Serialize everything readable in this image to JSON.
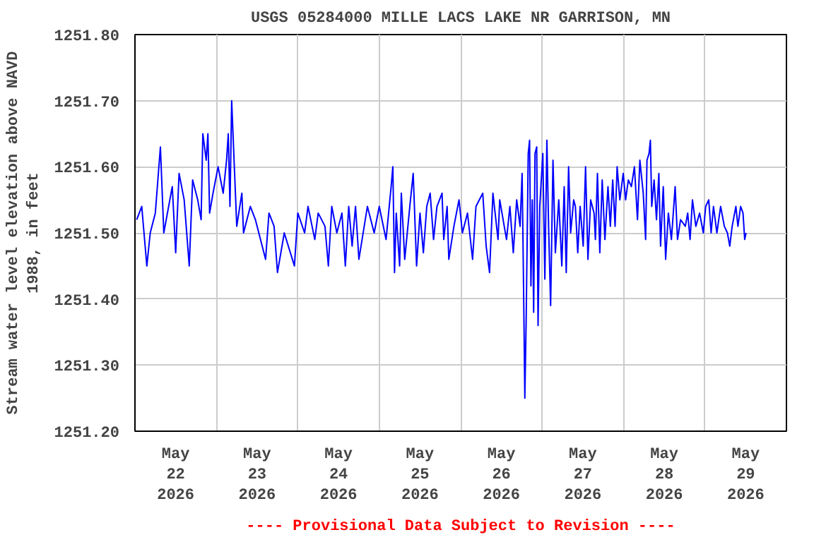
{
  "chart_data": {
    "type": "line",
    "title": "USGS 05284000 MILLE LACS LAKE NR GARRISON, MN",
    "ylabel": "Stream water level elevation above NAVD\n1988, in feet",
    "annotations": [
      "---- Provisional Data Subject to Revision ----"
    ],
    "xlim": [
      "2026-05-22",
      "2026-05-30"
    ],
    "xticks": [
      {
        "value": "2026-05-22",
        "label": null
      },
      {
        "value": "2026-05-22T12:00",
        "label": "May\n22\n2026"
      },
      {
        "value": "2026-05-23",
        "label": null
      },
      {
        "value": "2026-05-23T12:00",
        "label": "May\n23\n2026"
      },
      {
        "value": "2026-05-24",
        "label": null
      },
      {
        "value": "2026-05-24T12:00",
        "label": "May\n24\n2026"
      },
      {
        "value": "2026-05-25",
        "label": null
      },
      {
        "value": "2026-05-25T12:00",
        "label": "May\n25\n2026"
      },
      {
        "value": "2026-05-26",
        "label": null
      },
      {
        "value": "2026-05-26T12:00",
        "label": "May\n26\n2026"
      },
      {
        "value": "2026-05-27",
        "label": null
      },
      {
        "value": "2026-05-27T12:00",
        "label": "May\n27\n2026"
      },
      {
        "value": "2026-05-28",
        "label": null
      },
      {
        "value": "2026-05-28T12:00",
        "label": "May\n28\n2026"
      },
      {
        "value": "2026-05-29",
        "label": null
      },
      {
        "value": "2026-05-29T12:00",
        "label": "May\n29\n2026"
      },
      {
        "value": "2026-05-30",
        "label": null
      }
    ],
    "ylim": [
      1251.2,
      1251.8
    ],
    "yticks": [
      {
        "value": 1251.2,
        "label": "1251.20"
      },
      {
        "value": 1251.3,
        "label": "1251.30"
      },
      {
        "value": 1251.4,
        "label": "1251.40"
      },
      {
        "value": 1251.5,
        "label": "1251.50"
      },
      {
        "value": 1251.6,
        "label": "1251.60"
      },
      {
        "value": 1251.7,
        "label": "1251.70"
      },
      {
        "value": 1251.8,
        "label": "1251.80"
      }
    ],
    "grid": true,
    "line_style": "solid",
    "series": [
      {
        "color": "#0000ff",
        "x": [
          "2026-05-22T00:30",
          "2026-05-22T02:00",
          "2026-05-22T03:30",
          "2026-05-22T04:30",
          "2026-05-22T06:00",
          "2026-05-22T07:30",
          "2026-05-22T08:30",
          "2026-05-22T11:00",
          "2026-05-22T12:00",
          "2026-05-22T13:00",
          "2026-05-22T14:30",
          "2026-05-22T16:00",
          "2026-05-22T17:00",
          "2026-05-22T18:30",
          "2026-05-22T19:30",
          "2026-05-22T20:00",
          "2026-05-22T21:00",
          "2026-05-22T21:30",
          "2026-05-22T22:00",
          "2026-05-22T23:00",
          "2026-05-23T00:30",
          "2026-05-23T02:00",
          "2026-05-23T03:00",
          "2026-05-23T03:30",
          "2026-05-23T04:00",
          "2026-05-23T04:30",
          "2026-05-23T06:00",
          "2026-05-23T07:30",
          "2026-05-23T08:00",
          "2026-05-23T10:00",
          "2026-05-23T11:30",
          "2026-05-23T13:30",
          "2026-05-23T14:30",
          "2026-05-23T15:30",
          "2026-05-23T17:00",
          "2026-05-23T18:00",
          "2026-05-23T20:00",
          "2026-05-23T23:00",
          "2026-05-24T00:00",
          "2026-05-24T02:00",
          "2026-05-24T03:00",
          "2026-05-24T05:00",
          "2026-05-24T06:00",
          "2026-05-24T08:00",
          "2026-05-24T09:00",
          "2026-05-24T10:00",
          "2026-05-24T11:30",
          "2026-05-24T13:00",
          "2026-05-24T14:00",
          "2026-05-24T15:00",
          "2026-05-24T16:00",
          "2026-05-24T17:00",
          "2026-05-24T18:00",
          "2026-05-24T20:30",
          "2026-05-24T22:30",
          "2026-05-25T00:00",
          "2026-05-25T02:00",
          "2026-05-25T03:30",
          "2026-05-25T04:00",
          "2026-05-25T04:30",
          "2026-05-25T05:00",
          "2026-05-25T06:00",
          "2026-05-25T06:30",
          "2026-05-25T07:30",
          "2026-05-25T09:00",
          "2026-05-25T10:00",
          "2026-05-25T11:00",
          "2026-05-25T12:00",
          "2026-05-25T13:00",
          "2026-05-25T14:00",
          "2026-05-25T15:00",
          "2026-05-25T16:00",
          "2026-05-25T17:00",
          "2026-05-25T18:30",
          "2026-05-25T19:00",
          "2026-05-25T20:00",
          "2026-05-25T20:30",
          "2026-05-25T22:00",
          "2026-05-25T23:30",
          "2026-05-26T00:30",
          "2026-05-26T02:00",
          "2026-05-26T03:30",
          "2026-05-26T04:30",
          "2026-05-26T06:30",
          "2026-05-26T07:30",
          "2026-05-26T08:30",
          "2026-05-26T09:30",
          "2026-05-26T11:00",
          "2026-05-26T11:30",
          "2026-05-26T13:30",
          "2026-05-26T14:30",
          "2026-05-26T15:30",
          "2026-05-26T16:30",
          "2026-05-26T17:30",
          "2026-05-26T18:06",
          "2026-05-26T18:30",
          "2026-05-26T18:54",
          "2026-05-26T19:18",
          "2026-05-26T19:54",
          "2026-05-26T20:18",
          "2026-05-26T20:42",
          "2026-05-26T21:06",
          "2026-05-26T21:30",
          "2026-05-26T21:54",
          "2026-05-26T22:24",
          "2026-05-26T22:48",
          "2026-05-26T23:18",
          "2026-05-27T00:12",
          "2026-05-27T00:48",
          "2026-05-27T01:24",
          "2026-05-27T01:54",
          "2026-05-27T02:30",
          "2026-05-27T03:12",
          "2026-05-27T03:54",
          "2026-05-27T04:54",
          "2026-05-27T05:48",
          "2026-05-27T06:30",
          "2026-05-27T07:06",
          "2026-05-27T07:48",
          "2026-05-27T08:24",
          "2026-05-27T09:18",
          "2026-05-27T09:48",
          "2026-05-27T10:30",
          "2026-05-27T11:12",
          "2026-05-27T12:06",
          "2026-05-27T12:48",
          "2026-05-27T13:30",
          "2026-05-27T14:18",
          "2026-05-27T15:18",
          "2026-05-27T15:42",
          "2026-05-27T16:18",
          "2026-05-27T17:00",
          "2026-05-27T17:42",
          "2026-05-27T18:30",
          "2026-05-27T19:24",
          "2026-05-27T20:06",
          "2026-05-27T20:48",
          "2026-05-27T21:30",
          "2026-05-27T22:06",
          "2026-05-27T22:54",
          "2026-05-27T23:54",
          "2026-05-28T00:36",
          "2026-05-28T01:24",
          "2026-05-28T02:18",
          "2026-05-28T03:12",
          "2026-05-28T04:06",
          "2026-05-28T04:48",
          "2026-05-28T05:48",
          "2026-05-28T06:30",
          "2026-05-28T06:54",
          "2026-05-28T07:30",
          "2026-05-28T07:54",
          "2026-05-28T08:18",
          "2026-05-28T09:00",
          "2026-05-28T09:42",
          "2026-05-28T10:24",
          "2026-05-28T10:54",
          "2026-05-28T11:42",
          "2026-05-28T12:24",
          "2026-05-28T13:12",
          "2026-05-28T14:06",
          "2026-05-28T15:12",
          "2026-05-28T15:54",
          "2026-05-28T16:48",
          "2026-05-28T18:12",
          "2026-05-28T18:54",
          "2026-05-28T19:36",
          "2026-05-28T20:18",
          "2026-05-28T21:18",
          "2026-05-28T22:24",
          "2026-05-28T23:30",
          "2026-05-29T00:12",
          "2026-05-29T01:06",
          "2026-05-29T01:48",
          "2026-05-29T02:30",
          "2026-05-29T03:30",
          "2026-05-29T04:36",
          "2026-05-29T05:42",
          "2026-05-29T06:36",
          "2026-05-29T07:18",
          "2026-05-29T08:00",
          "2026-05-29T09:06",
          "2026-05-29T09:42",
          "2026-05-29T10:30",
          "2026-05-29T11:12",
          "2026-05-29T11:42",
          "2026-05-29T12:06"
        ],
        "values": [
          1251.52,
          1251.54,
          1251.45,
          1251.5,
          1251.53,
          1251.63,
          1251.5,
          1251.57,
          1251.47,
          1251.59,
          1251.55,
          1251.45,
          1251.58,
          1251.55,
          1251.52,
          1251.65,
          1251.61,
          1251.65,
          1251.53,
          1251.56,
          1251.6,
          1251.56,
          1251.61,
          1251.65,
          1251.54,
          1251.7,
          1251.51,
          1251.56,
          1251.5,
          1251.54,
          1251.52,
          1251.48,
          1251.46,
          1251.53,
          1251.51,
          1251.44,
          1251.5,
          1251.45,
          1251.53,
          1251.5,
          1251.54,
          1251.49,
          1251.53,
          1251.51,
          1251.45,
          1251.54,
          1251.5,
          1251.53,
          1251.45,
          1251.54,
          1251.48,
          1251.54,
          1251.46,
          1251.54,
          1251.5,
          1251.54,
          1251.49,
          1251.57,
          1251.6,
          1251.44,
          1251.53,
          1251.45,
          1251.56,
          1251.46,
          1251.54,
          1251.59,
          1251.45,
          1251.53,
          1251.47,
          1251.54,
          1251.56,
          1251.49,
          1251.54,
          1251.56,
          1251.49,
          1251.54,
          1251.46,
          1251.51,
          1251.55,
          1251.5,
          1251.53,
          1251.46,
          1251.54,
          1251.56,
          1251.48,
          1251.44,
          1251.56,
          1251.49,
          1251.55,
          1251.49,
          1251.54,
          1251.47,
          1251.55,
          1251.51,
          1251.59,
          1251.43,
          1251.25,
          1251.37,
          1251.62,
          1251.64,
          1251.42,
          1251.55,
          1251.38,
          1251.62,
          1251.63,
          1251.36,
          1251.54,
          1251.62,
          1251.43,
          1251.64,
          1251.51,
          1251.39,
          1251.61,
          1251.47,
          1251.55,
          1251.45,
          1251.57,
          1251.44,
          1251.6,
          1251.5,
          1251.55,
          1251.54,
          1251.47,
          1251.54,
          1251.48,
          1251.6,
          1251.46,
          1251.55,
          1251.53,
          1251.49,
          1251.59,
          1251.47,
          1251.58,
          1251.49,
          1251.57,
          1251.51,
          1251.58,
          1251.51,
          1251.6,
          1251.55,
          1251.59,
          1251.55,
          1251.58,
          1251.57,
          1251.6,
          1251.52,
          1251.61,
          1251.56,
          1251.49,
          1251.61,
          1251.62,
          1251.64,
          1251.54,
          1251.58,
          1251.52,
          1251.59,
          1251.48,
          1251.57,
          1251.46,
          1251.53,
          1251.49,
          1251.57,
          1251.49,
          1251.52,
          1251.51,
          1251.53,
          1251.49,
          1251.55,
          1251.51,
          1251.53,
          1251.5,
          1251.54,
          1251.55,
          1251.5,
          1251.54,
          1251.5,
          1251.54,
          1251.51,
          1251.5,
          1251.48,
          1251.51,
          1251.54,
          1251.51,
          1251.54,
          1251.53,
          1251.49,
          1251.5
        ]
      }
    ]
  }
}
